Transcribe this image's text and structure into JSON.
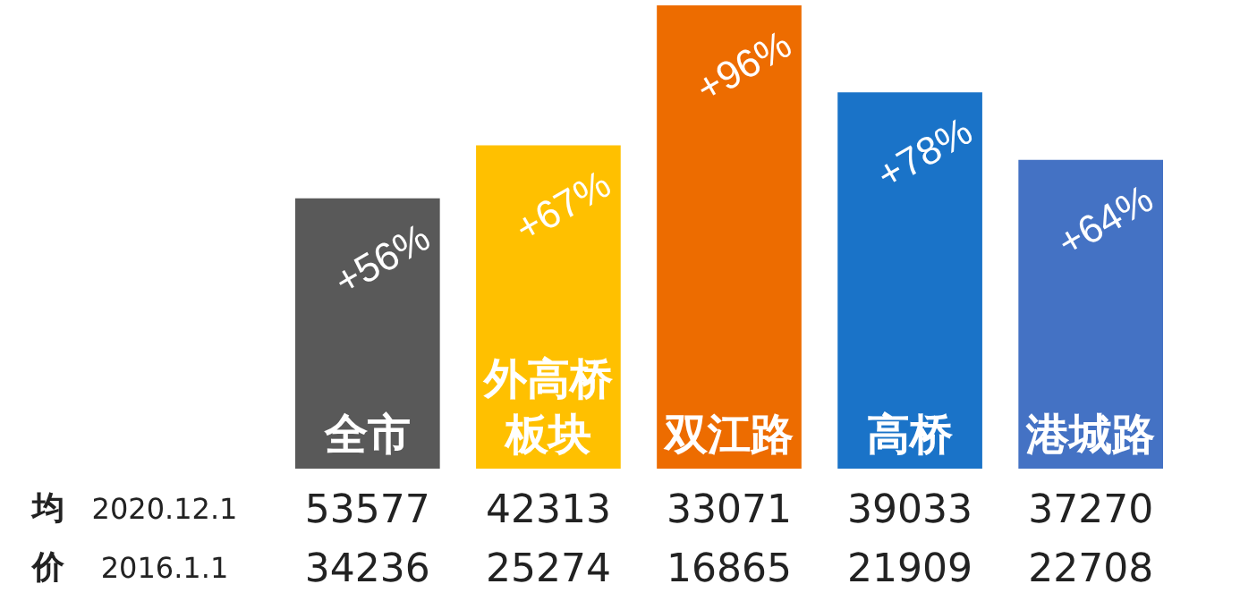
{
  "chart_data": {
    "type": "bar",
    "categories": [
      "全市",
      "外高桥板块",
      "双江路",
      "高桥",
      "港城路"
    ],
    "values": [
      56,
      67,
      96,
      78,
      64
    ],
    "value_labels": [
      "+56%",
      "+67%",
      "+96%",
      "+78%",
      "+64%"
    ],
    "colors": [
      "#595959",
      "#ffc000",
      "#ed6c00",
      "#1a73c8",
      "#4472c4"
    ],
    "annotations": [
      "均价",
      "2020.12.1",
      "53577",
      "42313",
      "33071",
      "39033",
      "37270",
      "2016.1.1",
      "34236",
      "25274",
      "16865",
      "21909",
      "22708"
    ]
  }
}
